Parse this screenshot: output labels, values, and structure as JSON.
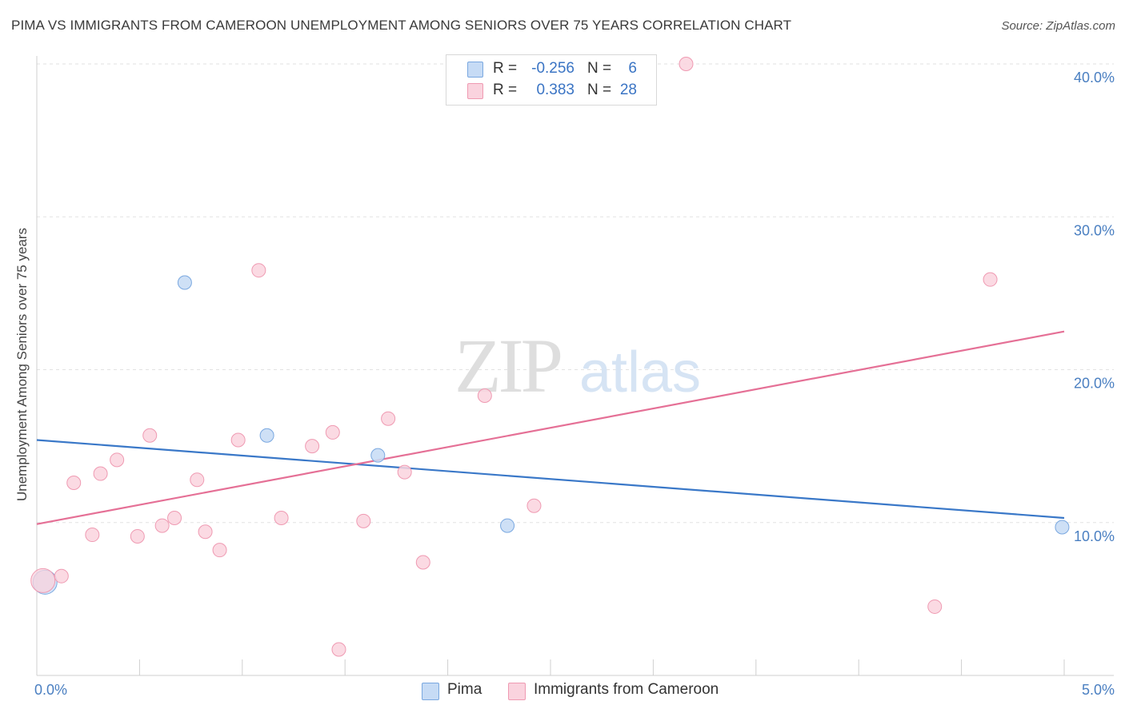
{
  "title": "PIMA VS IMMIGRANTS FROM CAMEROON UNEMPLOYMENT AMONG SENIORS OVER 75 YEARS CORRELATION CHART",
  "source": "Source: ZipAtlas.com",
  "watermark": {
    "zip": "ZIP",
    "atlas": "atlas"
  },
  "legend": {
    "rows": [
      {
        "r_label": "R =",
        "r_value": "-0.256",
        "n_label": "N =",
        "n_value": "6",
        "color": "#aac8f0"
      },
      {
        "r_label": "R =",
        "r_value": "0.383",
        "n_label": "N =",
        "n_value": "28",
        "color": "#f7bccb"
      }
    ]
  },
  "bottom_legend": [
    {
      "label": "Pima",
      "color": "#aac8f0"
    },
    {
      "label": "Immigrants from Cameroon",
      "color": "#f7bccb"
    }
  ],
  "chart_data": {
    "type": "scatter",
    "title": "PIMA VS IMMIGRANTS FROM CAMEROON UNEMPLOYMENT AMONG SENIORS OVER 75 YEARS CORRELATION CHART",
    "xlabel": "",
    "ylabel": "Unemployment Among Seniors over 75 years",
    "xlim": [
      0,
      5
    ],
    "ylim": [
      0,
      40
    ],
    "x_ticks": [
      {
        "value": 0,
        "label": "0.0%"
      },
      {
        "value": 5,
        "label": "5.0%"
      }
    ],
    "y_ticks": [
      {
        "value": 10,
        "label": "10.0%"
      },
      {
        "value": 20,
        "label": "20.0%"
      },
      {
        "value": 30,
        "label": "30.0%"
      },
      {
        "value": 40,
        "label": "40.0%"
      }
    ],
    "grid": true,
    "legend_position": "top-center",
    "series": [
      {
        "name": "Pima",
        "color": "#7aa8e0",
        "fill": "#c6dbf5",
        "line_color": "#3a78c8",
        "trend": [
          [
            0,
            15.4
          ],
          [
            5,
            10.3
          ]
        ],
        "points": [
          {
            "x": 0.04,
            "y": 6.1,
            "large": true
          },
          {
            "x": 0.72,
            "y": 25.7
          },
          {
            "x": 1.12,
            "y": 15.7
          },
          {
            "x": 1.66,
            "y": 14.4
          },
          {
            "x": 2.29,
            "y": 9.8
          },
          {
            "x": 4.99,
            "y": 9.7
          }
        ]
      },
      {
        "name": "Immigrants from Cameroon",
        "color": "#ef9ab2",
        "fill": "#fad3de",
        "line_color": "#e57096",
        "trend": [
          [
            0,
            9.9
          ],
          [
            5,
            22.5
          ]
        ],
        "points": [
          {
            "x": 0.03,
            "y": 6.2,
            "large": true
          },
          {
            "x": 0.12,
            "y": 6.5
          },
          {
            "x": 0.18,
            "y": 12.6
          },
          {
            "x": 0.27,
            "y": 9.2
          },
          {
            "x": 0.31,
            "y": 13.2
          },
          {
            "x": 0.39,
            "y": 14.1
          },
          {
            "x": 0.49,
            "y": 9.1
          },
          {
            "x": 0.55,
            "y": 15.7
          },
          {
            "x": 0.61,
            "y": 9.8
          },
          {
            "x": 0.67,
            "y": 10.3
          },
          {
            "x": 0.78,
            "y": 12.8
          },
          {
            "x": 0.82,
            "y": 9.4
          },
          {
            "x": 0.89,
            "y": 8.2
          },
          {
            "x": 0.98,
            "y": 15.4
          },
          {
            "x": 1.08,
            "y": 26.5
          },
          {
            "x": 1.19,
            "y": 10.3
          },
          {
            "x": 1.34,
            "y": 15.0
          },
          {
            "x": 1.44,
            "y": 15.9
          },
          {
            "x": 1.47,
            "y": 1.7
          },
          {
            "x": 1.59,
            "y": 10.1
          },
          {
            "x": 1.71,
            "y": 16.8
          },
          {
            "x": 1.79,
            "y": 13.3
          },
          {
            "x": 1.88,
            "y": 7.4
          },
          {
            "x": 2.18,
            "y": 18.3
          },
          {
            "x": 2.42,
            "y": 11.1
          },
          {
            "x": 3.16,
            "y": 40.0
          },
          {
            "x": 4.37,
            "y": 4.5
          },
          {
            "x": 4.64,
            "y": 25.9
          }
        ]
      }
    ]
  }
}
